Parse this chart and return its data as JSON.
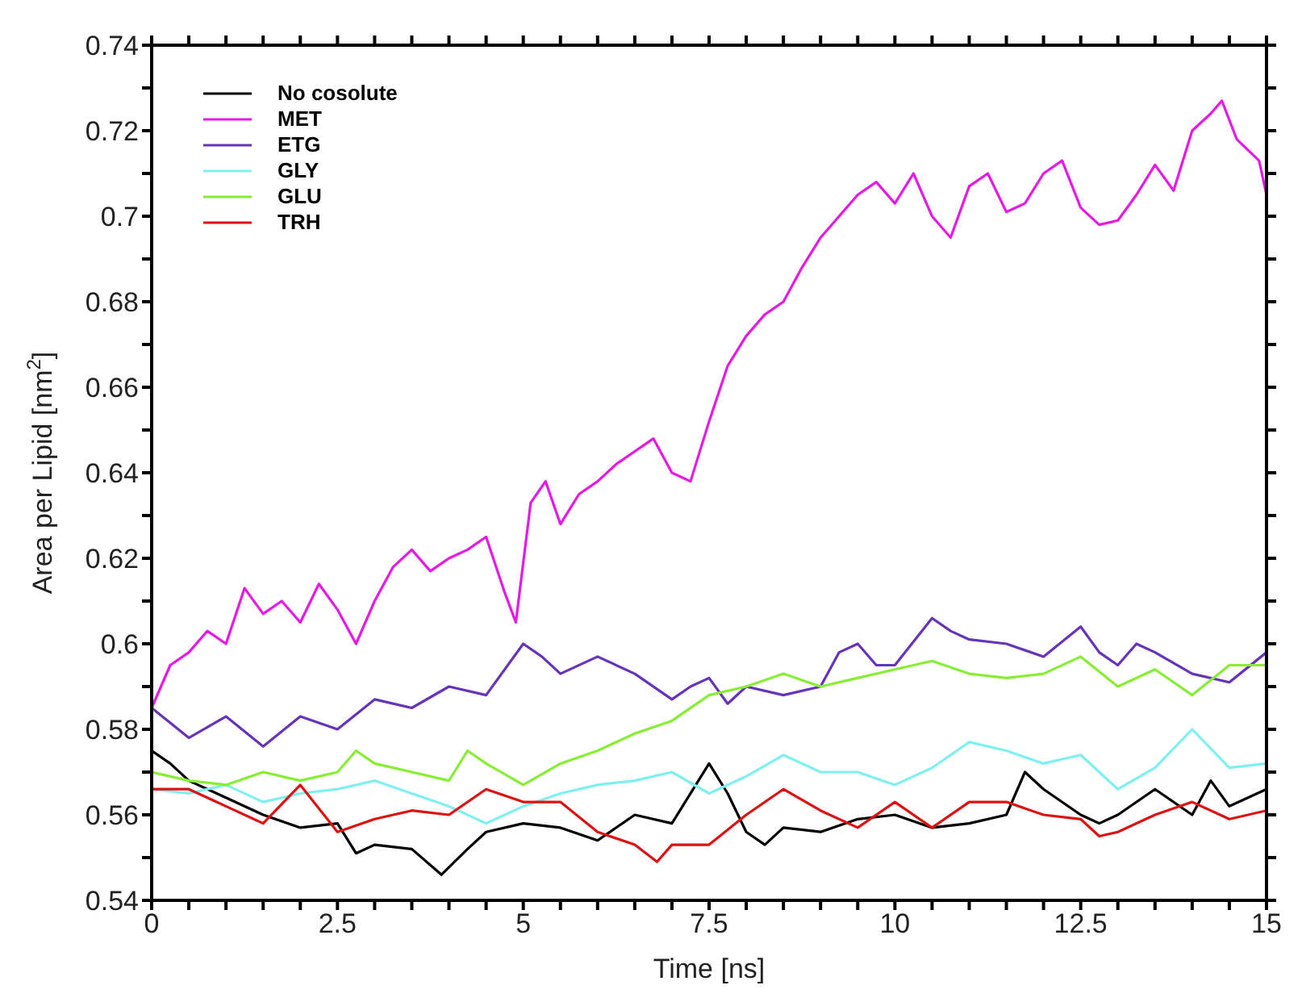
{
  "chart_data": {
    "type": "line",
    "xlabel": "Time [ns]",
    "ylabel": "Area per Lipid [nm$^{2}$]",
    "xlim": [
      0,
      15
    ],
    "ylim": [
      0.54,
      0.74
    ],
    "xticks": [
      0,
      {
        "value": 0.5,
        "label": null
      },
      {
        "value": 1,
        "label": null
      },
      {
        "value": 1.5,
        "label": null
      },
      {
        "value": 2,
        "label": null
      },
      2.5,
      {
        "value": 3,
        "label": null
      },
      {
        "value": 3.5,
        "label": null
      },
      {
        "value": 4,
        "label": null
      },
      {
        "value": 4.5,
        "label": null
      },
      5,
      {
        "value": 5.5,
        "label": null
      },
      {
        "value": 6,
        "label": null
      },
      {
        "value": 6.5,
        "label": null
      },
      {
        "value": 7,
        "label": null
      },
      7.5,
      {
        "value": 8,
        "label": null
      },
      {
        "value": 8.5,
        "label": null
      },
      {
        "value": 9,
        "label": null
      },
      {
        "value": 9.5,
        "label": null
      },
      10,
      {
        "value": 10.5,
        "label": null
      },
      {
        "value": 11,
        "label": null
      },
      {
        "value": 11.5,
        "label": null
      },
      {
        "value": 12,
        "label": null
      },
      12.5,
      {
        "value": 13,
        "label": null
      },
      {
        "value": 13.5,
        "label": null
      },
      {
        "value": 14,
        "label": null
      },
      {
        "value": 14.5,
        "label": null
      },
      15
    ],
    "yticks": [
      0.54,
      {
        "value": 0.55,
        "label": null
      },
      0.56,
      {
        "value": 0.57,
        "label": null
      },
      0.58,
      {
        "value": 0.59,
        "label": null
      },
      0.6,
      {
        "value": 0.61,
        "label": null
      },
      0.62,
      {
        "value": 0.63,
        "label": null
      },
      0.64,
      {
        "value": 0.65,
        "label": null
      },
      0.66,
      {
        "value": 0.67,
        "label": null
      },
      0.68,
      {
        "value": 0.69,
        "label": null
      },
      0.7,
      {
        "value": 0.71,
        "label": null
      },
      0.72,
      {
        "value": 0.73,
        "label": null
      },
      0.74
    ],
    "grid": false,
    "legend": "top left",
    "marker": "none",
    "line_style": "solid",
    "series": [
      {
        "name": "No cosolute",
        "color": "#000000",
        "x": [
          0,
          0.25,
          0.5,
          1,
          1.5,
          2,
          2.5,
          2.75,
          3,
          3.5,
          3.9,
          4.25,
          4.5,
          5,
          5.5,
          6,
          6.5,
          7,
          7.5,
          7.75,
          8,
          8.25,
          8.5,
          9,
          9.5,
          10,
          10.5,
          11,
          11.5,
          11.75,
          12,
          12.5,
          12.75,
          13,
          13.5,
          14,
          14.25,
          14.5,
          15
        ],
        "values": [
          0.575,
          0.572,
          0.568,
          0.564,
          0.56,
          0.557,
          0.558,
          0.551,
          0.553,
          0.552,
          0.546,
          0.552,
          0.556,
          0.558,
          0.557,
          0.554,
          0.56,
          0.558,
          0.572,
          0.565,
          0.556,
          0.553,
          0.557,
          0.556,
          0.559,
          0.56,
          0.557,
          0.558,
          0.56,
          0.57,
          0.566,
          0.56,
          0.558,
          0.56,
          0.566,
          0.56,
          0.568,
          0.562,
          0.566
        ]
      },
      {
        "name": "MET",
        "color": "#e619e6",
        "x": [
          0,
          0.25,
          0.5,
          0.75,
          1,
          1.25,
          1.5,
          1.75,
          2,
          2.25,
          2.5,
          2.75,
          3,
          3.25,
          3.5,
          3.75,
          4,
          4.25,
          4.5,
          4.75,
          4.9,
          5.1,
          5.3,
          5.5,
          5.75,
          6,
          6.25,
          6.5,
          6.75,
          7,
          7.25,
          7.5,
          7.75,
          8,
          8.25,
          8.5,
          8.75,
          9,
          9.25,
          9.5,
          9.75,
          10,
          10.25,
          10.5,
          10.75,
          11,
          11.25,
          11.5,
          11.75,
          12,
          12.25,
          12.5,
          12.75,
          13,
          13.25,
          13.5,
          13.75,
          14,
          14.25,
          14.4,
          14.6,
          14.9,
          15
        ],
        "values": [
          0.585,
          0.595,
          0.598,
          0.603,
          0.6,
          0.613,
          0.607,
          0.61,
          0.605,
          0.614,
          0.608,
          0.6,
          0.61,
          0.618,
          0.622,
          0.617,
          0.62,
          0.622,
          0.625,
          0.612,
          0.605,
          0.633,
          0.638,
          0.628,
          0.635,
          0.638,
          0.642,
          0.645,
          0.648,
          0.64,
          0.638,
          0.652,
          0.665,
          0.672,
          0.677,
          0.68,
          0.688,
          0.695,
          0.7,
          0.705,
          0.708,
          0.703,
          0.71,
          0.7,
          0.695,
          0.707,
          0.71,
          0.701,
          0.703,
          0.71,
          0.713,
          0.702,
          0.698,
          0.699,
          0.705,
          0.712,
          0.706,
          0.72,
          0.724,
          0.727,
          0.718,
          0.713,
          0.705
        ]
      },
      {
        "name": "ETG",
        "color": "#6633bb",
        "x": [
          0,
          0.5,
          1,
          1.5,
          2,
          2.5,
          3,
          3.5,
          4,
          4.5,
          5,
          5.25,
          5.5,
          6,
          6.5,
          7,
          7.25,
          7.5,
          7.75,
          8,
          8.5,
          9,
          9.25,
          9.5,
          9.75,
          10,
          10.5,
          10.75,
          11,
          11.5,
          12,
          12.5,
          12.75,
          13,
          13.25,
          13.5,
          14,
          14.5,
          15
        ],
        "values": [
          0.585,
          0.578,
          0.583,
          0.576,
          0.583,
          0.58,
          0.587,
          0.585,
          0.59,
          0.588,
          0.6,
          0.597,
          0.593,
          0.597,
          0.593,
          0.587,
          0.59,
          0.592,
          0.586,
          0.59,
          0.588,
          0.59,
          0.598,
          0.6,
          0.595,
          0.595,
          0.606,
          0.603,
          0.601,
          0.6,
          0.597,
          0.604,
          0.598,
          0.595,
          0.6,
          0.598,
          0.593,
          0.591,
          0.598
        ]
      },
      {
        "name": "GLY",
        "color": "#7ff0f0",
        "x": [
          0,
          0.5,
          1,
          1.5,
          2,
          2.5,
          3,
          3.5,
          4,
          4.5,
          5,
          5.5,
          6,
          6.5,
          7,
          7.5,
          8,
          8.5,
          9,
          9.5,
          10,
          10.5,
          11,
          11.5,
          12,
          12.5,
          13,
          13.5,
          14,
          14.5,
          15
        ],
        "values": [
          0.566,
          0.565,
          0.567,
          0.563,
          0.565,
          0.566,
          0.568,
          0.565,
          0.562,
          0.558,
          0.562,
          0.565,
          0.567,
          0.568,
          0.57,
          0.565,
          0.569,
          0.574,
          0.57,
          0.57,
          0.567,
          0.571,
          0.577,
          0.575,
          0.572,
          0.574,
          0.566,
          0.571,
          0.58,
          0.571,
          0.572
        ]
      },
      {
        "name": "GLU",
        "color": "#88ee33",
        "x": [
          0,
          0.5,
          1,
          1.5,
          2,
          2.5,
          2.75,
          3,
          3.5,
          4,
          4.25,
          4.5,
          5,
          5.5,
          6,
          6.5,
          7,
          7.5,
          8,
          8.5,
          9,
          9.5,
          10,
          10.5,
          11,
          11.5,
          12,
          12.5,
          13,
          13.5,
          14,
          14.5,
          15
        ],
        "values": [
          0.57,
          0.568,
          0.567,
          0.57,
          0.568,
          0.57,
          0.575,
          0.572,
          0.57,
          0.568,
          0.575,
          0.572,
          0.567,
          0.572,
          0.575,
          0.579,
          0.582,
          0.588,
          0.59,
          0.593,
          0.59,
          0.592,
          0.594,
          0.596,
          0.593,
          0.592,
          0.593,
          0.597,
          0.59,
          0.594,
          0.588,
          0.595,
          0.595
        ]
      },
      {
        "name": "TRH",
        "color": "#dd1111",
        "x": [
          0,
          0.5,
          1,
          1.5,
          2,
          2.5,
          3,
          3.5,
          4,
          4.5,
          5,
          5.5,
          6,
          6.5,
          6.8,
          7,
          7.5,
          8,
          8.5,
          9,
          9.5,
          10,
          10.5,
          11,
          11.5,
          12,
          12.5,
          12.75,
          13,
          13.5,
          14,
          14.5,
          15
        ],
        "values": [
          0.566,
          0.566,
          0.562,
          0.558,
          0.567,
          0.556,
          0.559,
          0.561,
          0.56,
          0.566,
          0.563,
          0.563,
          0.556,
          0.553,
          0.549,
          0.553,
          0.553,
          0.56,
          0.566,
          0.561,
          0.557,
          0.563,
          0.557,
          0.563,
          0.563,
          0.56,
          0.559,
          0.555,
          0.556,
          0.56,
          0.563,
          0.559,
          0.561
        ]
      }
    ]
  }
}
